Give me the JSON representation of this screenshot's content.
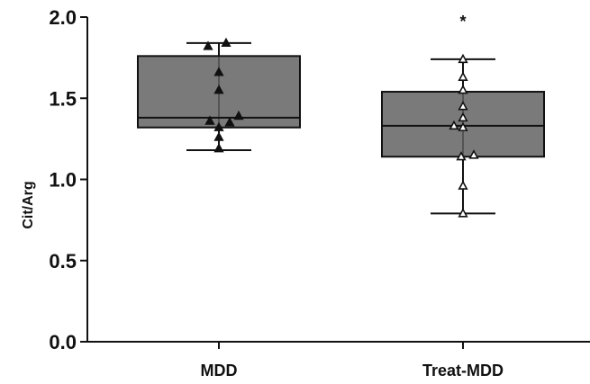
{
  "chart_data": {
    "type": "box",
    "title": "",
    "xlabel": "",
    "ylabel": "Cit/Arg",
    "ylim": [
      0.0,
      2.0
    ],
    "yticks": [
      "0.0",
      "0.5",
      "1.0",
      "1.5",
      "2.0"
    ],
    "grid": false,
    "legend": "none",
    "categories": [
      "MDD",
      "Treat-MDD"
    ],
    "boxes": [
      {
        "category": "MDD",
        "min": 1.18,
        "q1": 1.32,
        "median": 1.38,
        "q3": 1.76,
        "max": 1.84,
        "marker": "filled-triangle",
        "points": [
          1.84,
          1.82,
          1.66,
          1.55,
          1.39,
          1.36,
          1.35,
          1.32,
          1.26,
          1.19
        ],
        "annotation": ""
      },
      {
        "category": "Treat-MDD",
        "min": 0.79,
        "q1": 1.14,
        "median": 1.33,
        "q3": 1.54,
        "max": 1.74,
        "marker": "open-triangle",
        "points": [
          1.74,
          1.63,
          1.55,
          1.45,
          1.38,
          1.33,
          1.32,
          1.15,
          1.14,
          0.96,
          0.79
        ],
        "annotation": "*"
      }
    ],
    "colors": {
      "box_fill": "#7a7a7a",
      "stroke": "#111111",
      "open_marker_fill": "#ffffff"
    }
  }
}
